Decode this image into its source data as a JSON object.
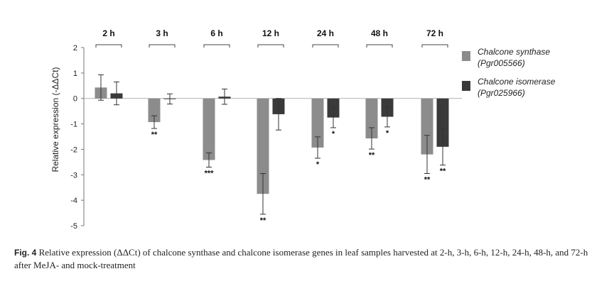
{
  "chart_data": {
    "type": "bar",
    "title": "",
    "xlabel": "",
    "ylabel": "Relative expression (-ΔΔCt)",
    "ylim": [
      -5,
      2
    ],
    "yticks": [
      "2",
      "1",
      "0",
      "-1",
      "-2",
      "-3",
      "-4",
      "-5"
    ],
    "grid": false,
    "legend_position": "right",
    "categories": [
      "2 h",
      "3 h",
      "6 h",
      "12 h",
      "24 h",
      "48 h",
      "72 h"
    ],
    "series": [
      {
        "name_main": "Chalcone synthase",
        "name_id": "(Pgr005566)",
        "color": "#8c8c8c",
        "values": [
          0.43,
          -0.93,
          -2.42,
          -3.75,
          -1.93,
          -1.57,
          -2.2
        ],
        "errors": [
          0.5,
          0.25,
          0.28,
          0.8,
          0.42,
          0.42,
          0.75
        ],
        "significance": [
          "",
          "**",
          "***",
          "**",
          "*",
          "**",
          "**"
        ]
      },
      {
        "name_main": "Chalcone isomerase",
        "name_id": "(Pgr025966)",
        "color": "#3a3a3a",
        "values": [
          0.2,
          -0.02,
          0.07,
          -0.62,
          -0.75,
          -0.72,
          -1.9
        ],
        "errors": [
          0.45,
          0.2,
          0.3,
          0.62,
          0.4,
          0.4,
          0.72
        ],
        "significance": [
          "",
          "",
          "",
          "",
          "*",
          "*",
          "**"
        ]
      }
    ]
  },
  "caption": {
    "label": "Fig. 4",
    "text": " Relative expression (ΔΔCt) of chalcone synthase and chalcone isomerase genes in leaf samples harvested at 2-h, 3-h, 6-h, 12-h, 24-h, 48-h, and 72-h after MeJA- and mock-treatment"
  }
}
